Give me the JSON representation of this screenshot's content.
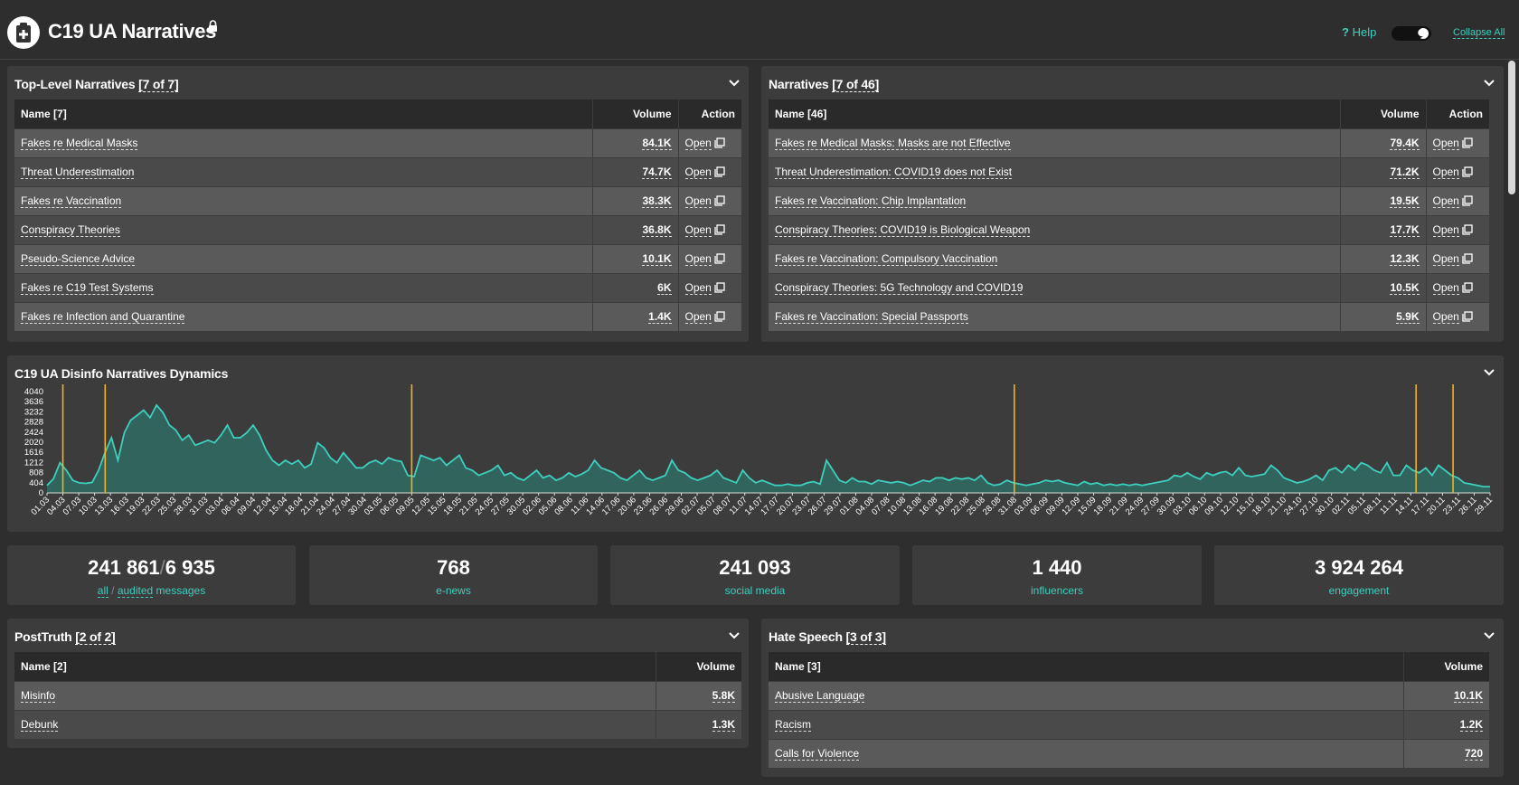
{
  "header": {
    "title": "C19 UA Narratives",
    "help_label": "Help",
    "collapse_label": "Collapse All"
  },
  "colors": {
    "accent": "#3ecfbf",
    "area_fill": "#2f6b62",
    "event_line": "#f2b31d",
    "panel": "#3c3c3c",
    "background": "#2e2e2e"
  },
  "top_level": {
    "title": "Top-Level Narratives",
    "count": "[7 of 7]",
    "col_name": "Name [7]",
    "col_volume": "Volume",
    "col_action": "Action",
    "rows": [
      {
        "name": "Fakes re Medical Masks",
        "volume": "84.1K",
        "action": "Open"
      },
      {
        "name": "Threat Underestimation",
        "volume": "74.7K",
        "action": "Open"
      },
      {
        "name": "Fakes re Vaccination",
        "volume": "38.3K",
        "action": "Open"
      },
      {
        "name": "Conspiracy Theories",
        "volume": "36.8K",
        "action": "Open"
      },
      {
        "name": "Pseudo-Science Advice",
        "volume": "10.1K",
        "action": "Open"
      },
      {
        "name": "Fakes re C19 Test Systems",
        "volume": "6K",
        "action": "Open"
      },
      {
        "name": "Fakes re Infection and Quarantine",
        "volume": "1.4K",
        "action": "Open"
      }
    ]
  },
  "narratives": {
    "title": "Narratives",
    "count": "[7 of 46]",
    "col_name": "Name [46]",
    "col_volume": "Volume",
    "col_action": "Action",
    "rows": [
      {
        "name": "Fakes re Medical Masks: Masks are not Effective",
        "volume": "79.4K",
        "action": "Open"
      },
      {
        "name": "Threat Underestimation: COVID19 does not Exist",
        "volume": "71.2K",
        "action": "Open"
      },
      {
        "name": "Fakes re Vaccination: Chip Implantation",
        "volume": "19.5K",
        "action": "Open"
      },
      {
        "name": "Conspiracy Theories: COVID19 is Biological Weapon",
        "volume": "17.7K",
        "action": "Open"
      },
      {
        "name": "Fakes re Vaccination: Compulsory Vaccination",
        "volume": "12.3K",
        "action": "Open"
      },
      {
        "name": "Conspiracy Theories: 5G Technology and COVID19",
        "volume": "10.5K",
        "action": "Open"
      },
      {
        "name": "Fakes re Vaccination: Special Passports",
        "volume": "5.9K",
        "action": "Open"
      }
    ]
  },
  "dynamics": {
    "title": "C19 UA Disinfo Narratives Dynamics"
  },
  "chart_data": {
    "type": "area",
    "title": "C19 UA Disinfo Narratives Dynamics",
    "xlabel": "",
    "ylabel": "",
    "ylim": [
      0,
      4040
    ],
    "y_ticks": [
      0,
      404,
      808,
      1212,
      1616,
      2020,
      2424,
      2828,
      3232,
      3636,
      4040
    ],
    "x_ticks": [
      "01.03",
      "04.03",
      "07.03",
      "10.03",
      "13.03",
      "16.03",
      "19.03",
      "22.03",
      "25.03",
      "28.03",
      "31.03",
      "03.04",
      "06.04",
      "09.04",
      "12.04",
      "15.04",
      "18.04",
      "21.04",
      "24.04",
      "27.04",
      "30.04",
      "03.05",
      "06.05",
      "09.05",
      "12.05",
      "15.05",
      "18.05",
      "21.05",
      "24.05",
      "27.05",
      "30.05",
      "02.06",
      "05.06",
      "08.06",
      "11.06",
      "14.06",
      "17.06",
      "20.06",
      "23.06",
      "26.06",
      "29.06",
      "02.07",
      "05.07",
      "08.07",
      "11.07",
      "14.07",
      "17.07",
      "20.07",
      "23.07",
      "26.07",
      "29.07",
      "01.08",
      "04.08",
      "07.08",
      "10.08",
      "13.08",
      "16.08",
      "19.08",
      "22.08",
      "25.08",
      "28.08",
      "31.08",
      "03.09",
      "06.09",
      "09.09",
      "12.09",
      "15.09",
      "18.09",
      "21.09",
      "24.09",
      "27.09",
      "30.09",
      "03.10",
      "06.10",
      "09.10",
      "12.10",
      "15.10",
      "18.10",
      "21.10",
      "24.10",
      "27.10",
      "30.10",
      "02.11",
      "05.11",
      "08.11",
      "11.11",
      "14.11",
      "17.11",
      "20.11",
      "23.11",
      "26.11",
      "29.11"
    ],
    "series": [
      {
        "values": [
          300,
          560,
          1200,
          900,
          500,
          400,
          380,
          420,
          900,
          1600,
          2200,
          1300,
          2400,
          2900,
          3100,
          3300,
          3000,
          3500,
          3200,
          2700,
          2500,
          2100,
          2300,
          1900,
          2000,
          2100,
          2000,
          2300,
          2700,
          2200,
          2200,
          2400,
          2700,
          2300,
          1700,
          1300,
          1100,
          1300,
          1150,
          1300,
          1000,
          1150,
          2000,
          1800,
          1400,
          1200,
          1600,
          1300,
          1000,
          1000,
          1200,
          1300,
          1150,
          1400,
          1300,
          1250,
          700,
          650,
          1500,
          1400,
          1300,
          1400,
          1100,
          1300,
          1500,
          1000,
          900,
          700,
          800,
          900,
          1100,
          700,
          800,
          600,
          500,
          700,
          900,
          600,
          700,
          500,
          600,
          800,
          650,
          750,
          900,
          1300,
          1000,
          900,
          800,
          600,
          500,
          700,
          900,
          600,
          500,
          600,
          700,
          1300,
          900,
          800,
          600,
          500,
          600,
          700,
          900,
          600,
          500,
          400,
          900,
          600,
          400,
          500,
          400,
          300,
          300,
          350,
          300,
          300,
          400,
          450,
          350,
          1300,
          900,
          500,
          400,
          600,
          450,
          450,
          350,
          500,
          450,
          400,
          450,
          400,
          300,
          400,
          500,
          450,
          600,
          600,
          500,
          600,
          550,
          600,
          500,
          700,
          400,
          300,
          350,
          500,
          400,
          350,
          300,
          350,
          400,
          500,
          450,
          500,
          400,
          350,
          300,
          450,
          350,
          400,
          300,
          350,
          300,
          350,
          300,
          350,
          300,
          350,
          400,
          450,
          500,
          700,
          650,
          800,
          650,
          550,
          800,
          700,
          800,
          850,
          700,
          1000,
          700,
          650,
          700,
          750,
          1100,
          900,
          600,
          500,
          400,
          450,
          550,
          700,
          500,
          900,
          1000,
          800,
          1100,
          900,
          1200,
          1100,
          900,
          800,
          1200,
          700,
          700,
          1100,
          900,
          800,
          1000,
          700,
          1100,
          900,
          700,
          600,
          400,
          350,
          300,
          250,
          250
        ]
      }
    ],
    "event_markers": [
      "04.03",
      "12.03",
      "09.05",
      "31.08",
      "15.11",
      "22.11"
    ]
  },
  "stats": [
    {
      "value_a": "241 861",
      "sep": "/",
      "value_b": "6 935",
      "label_a": "all",
      "label_sep": " / ",
      "label_b": "audited",
      "label_c": " messages"
    },
    {
      "value": "768",
      "label": "e-news"
    },
    {
      "value": "241 093",
      "label": "social media"
    },
    {
      "value": "1 440",
      "label": "influencers"
    },
    {
      "value": "3 924 264",
      "label": "engagement"
    }
  ],
  "posttruth": {
    "title": "PostTruth",
    "count": "[2 of 2]",
    "col_name": "Name [2]",
    "col_volume": "Volume",
    "rows": [
      {
        "name": "Misinfo",
        "volume": "5.8K"
      },
      {
        "name": "Debunk",
        "volume": "1.3K"
      }
    ]
  },
  "hate": {
    "title": "Hate Speech",
    "count": "[3 of 3]",
    "col_name": "Name [3]",
    "col_volume": "Volume",
    "rows": [
      {
        "name": "Abusive Language",
        "volume": "10.1K"
      },
      {
        "name": "Racism",
        "volume": "1.2K"
      },
      {
        "name": "Calls for Violence",
        "volume": "720"
      }
    ]
  }
}
